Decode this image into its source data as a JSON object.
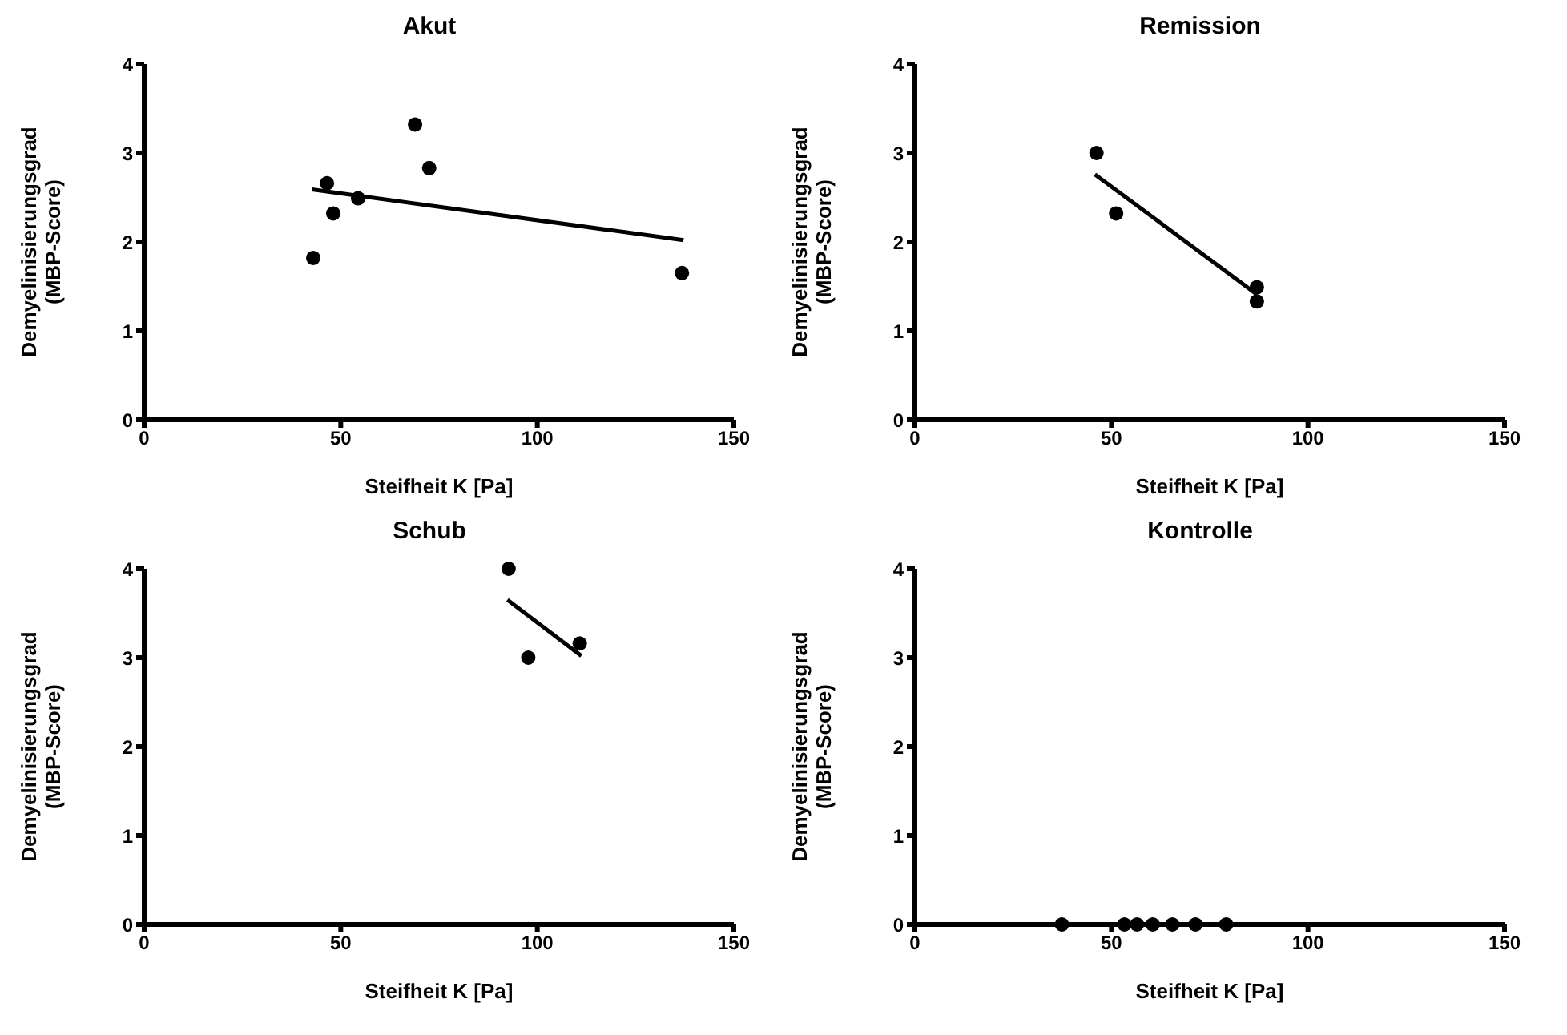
{
  "chart_data": [
    {
      "type": "scatter",
      "title": "Akut",
      "xlabel": "Steifheit K [Pa]",
      "ylabel": "Demyelinisierungsgrad\n(MBP-Score)",
      "xlim": [
        0,
        150
      ],
      "xticks": [
        0,
        50,
        100,
        150
      ],
      "ylim": [
        0,
        4
      ],
      "yticks": [
        0,
        1,
        2,
        3,
        4
      ],
      "marker": "circle",
      "series": [
        {
          "type": "scatter",
          "color": "#000000",
          "x": [
            43,
            46.5,
            48.1,
            54.4,
            68.9,
            72.5,
            136.8
          ],
          "values": [
            1.82,
            2.66,
            2.32,
            2.49,
            3.32,
            2.83,
            1.65
          ]
        },
        {
          "type": "line",
          "color": "#000000",
          "marker": "none",
          "x": [
            42.7,
            137.2
          ],
          "values": [
            2.59,
            2.02
          ]
        }
      ]
    },
    {
      "type": "scatter",
      "title": "Remission",
      "xlabel": "Steifheit K [Pa]",
      "ylabel": "Demyelinisierungsgrad\n(MBP-Score)",
      "xlim": [
        0,
        150
      ],
      "xticks": [
        0,
        50,
        100,
        150
      ],
      "ylim": [
        0,
        4
      ],
      "yticks": [
        0,
        1,
        2,
        3,
        4
      ],
      "marker": "circle",
      "series": [
        {
          "type": "scatter",
          "color": "#000000",
          "x": [
            46.2,
            51.2,
            87,
            87
          ],
          "values": [
            3.0,
            2.32,
            1.49,
            1.33
          ]
        },
        {
          "type": "line",
          "color": "#000000",
          "marker": "none",
          "x": [
            45.8,
            87
          ],
          "values": [
            2.76,
            1.41
          ]
        }
      ]
    },
    {
      "type": "scatter",
      "title": "Schub",
      "xlabel": "Steifheit K [Pa]",
      "ylabel": "Demyelinisierungsgrad\n(MBP-Score)",
      "xlim": [
        0,
        150
      ],
      "xticks": [
        0,
        50,
        100,
        150
      ],
      "ylim": [
        0,
        4
      ],
      "yticks": [
        0,
        1,
        2,
        3,
        4
      ],
      "marker": "circle",
      "series": [
        {
          "type": "scatter",
          "color": "#000000",
          "x": [
            92.7,
            97.7,
            110.8
          ],
          "values": [
            4.0,
            3.0,
            3.16
          ]
        },
        {
          "type": "line",
          "color": "#000000",
          "marker": "none",
          "x": [
            92.4,
            111.2
          ],
          "values": [
            3.65,
            3.02
          ]
        }
      ]
    },
    {
      "type": "scatter",
      "title": "Kontrolle",
      "xlabel": "Steifheit K [Pa]",
      "ylabel": "Demyelinisierungsgrad\n(MBP-Score)",
      "xlim": [
        0,
        150
      ],
      "xticks": [
        0,
        50,
        100,
        150
      ],
      "ylim": [
        0,
        4
      ],
      "yticks": [
        0,
        1,
        2,
        3,
        4
      ],
      "marker": "circle",
      "series": [
        {
          "type": "scatter",
          "color": "#000000",
          "x": [
            37.4,
            53.3,
            56.5,
            60.5,
            65.5,
            71.4,
            79.2
          ],
          "values": [
            0,
            0,
            0,
            0,
            0,
            0,
            0
          ]
        }
      ]
    }
  ]
}
